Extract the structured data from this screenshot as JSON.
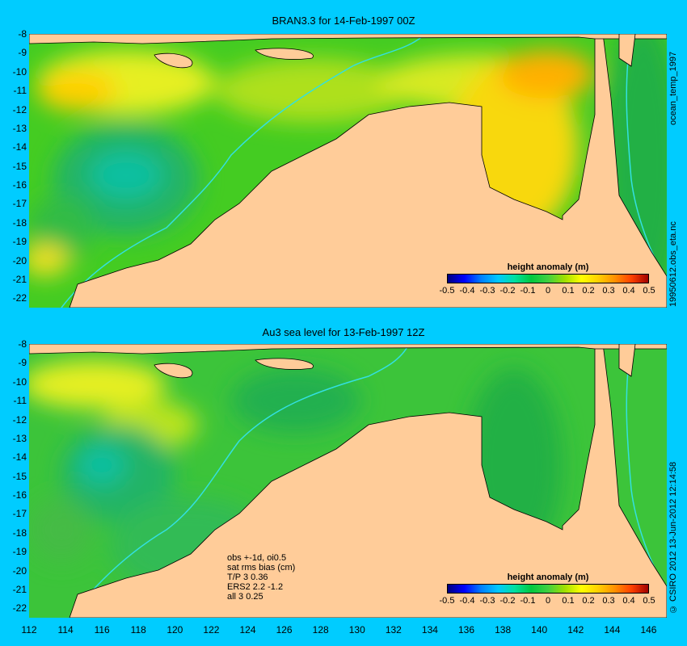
{
  "panels": [
    {
      "title": "BRAN3.3 for 14-Feb-1997 00Z",
      "side_label": "19950612.obs_eta.nc",
      "top_side_label": "ocean_temp_1997"
    },
    {
      "title": "Au3 sea level  for 13-Feb-1997 12Z",
      "side_label": "© CSIRO 2012  13-Jun-2012 12:14:58"
    }
  ],
  "map": {
    "lon_range": [
      112,
      147
    ],
    "lat_range": [
      -22.5,
      -8
    ],
    "x_ticks": [
      "112",
      "114",
      "116",
      "118",
      "120",
      "122",
      "124",
      "126",
      "128",
      "130",
      "132",
      "134",
      "136",
      "138",
      "140",
      "142",
      "144",
      "146"
    ],
    "y_ticks": [
      "-8",
      "-9",
      "-10",
      "-11",
      "-12",
      "-13",
      "-14",
      "-15",
      "-16",
      "-17",
      "-18",
      "-19",
      "-20",
      "-21",
      "-22"
    ],
    "colors": {
      "land": "#ffcc99",
      "frame": "#00ccff",
      "contour": "#33e0e0"
    }
  },
  "colorbar": {
    "title": "height anomaly (m)",
    "ticks": [
      "-0.5",
      "-0.4",
      "-0.3",
      "-0.2",
      "-0.1",
      "0",
      "0.1",
      "0.2",
      "0.3",
      "0.4",
      "0.5"
    ],
    "range": [
      -0.5,
      0.5
    ]
  },
  "stats": {
    "lines": [
      "obs +-1d, oi0.5",
      "sat rms bias (cm)",
      "T/P  3 0.36",
      "ERS2 2.2 -1.2",
      "all 3 0.25"
    ]
  }
}
